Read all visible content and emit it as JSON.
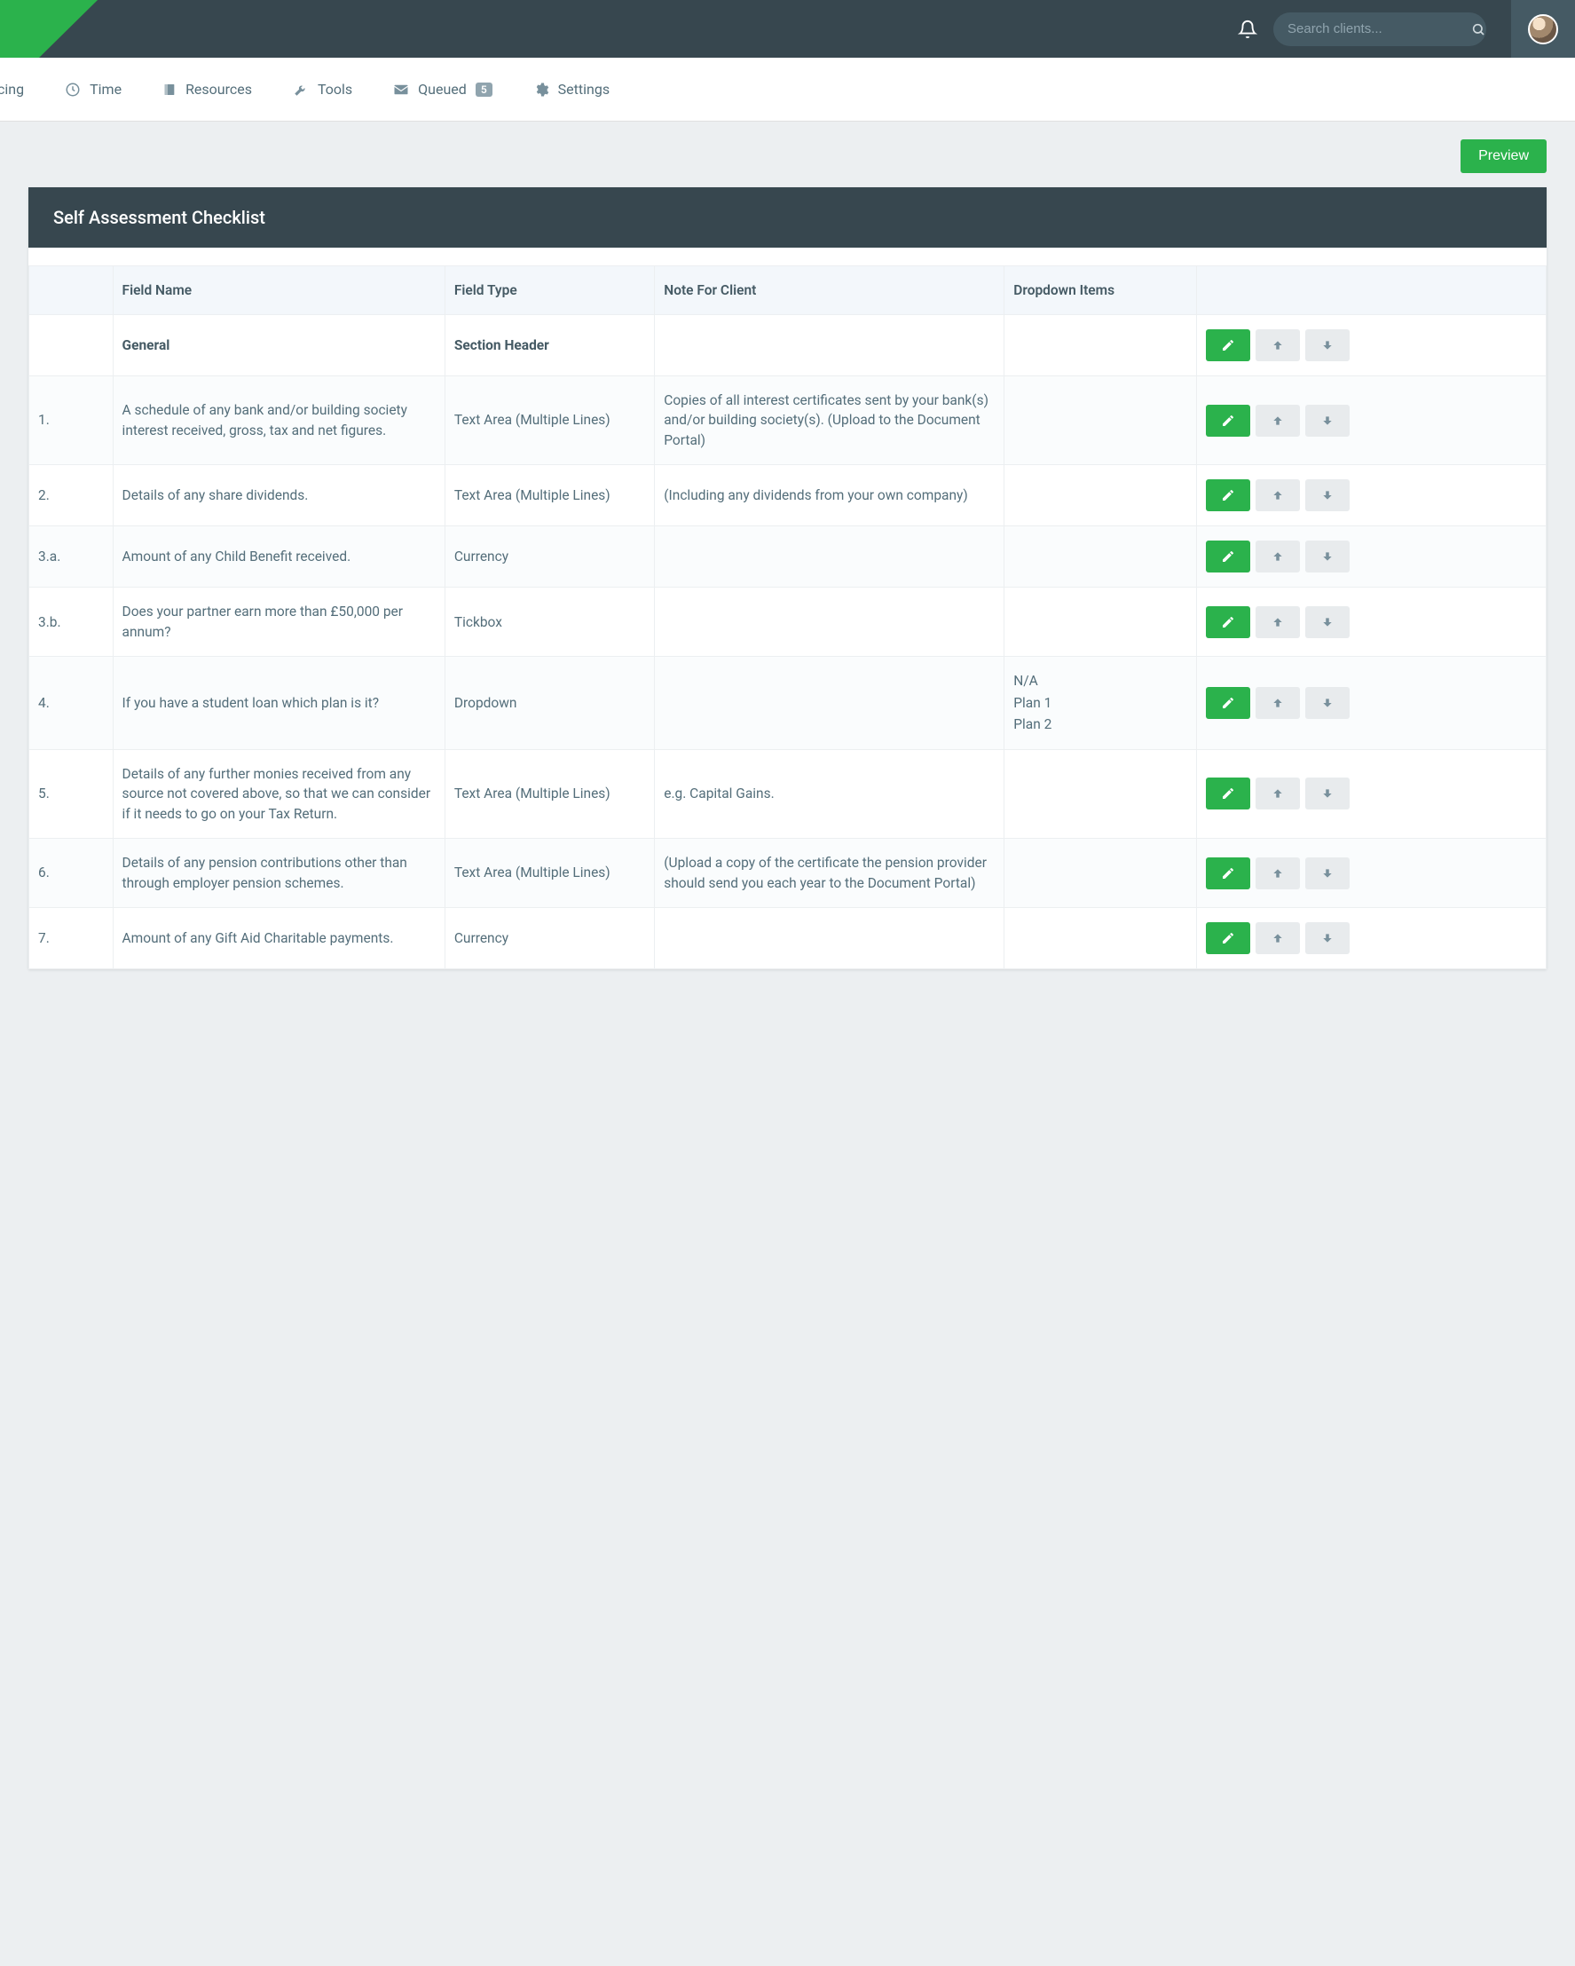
{
  "colors": {
    "accent": "#2bb24c",
    "header_bg": "#37474f",
    "page_bg": "#eceff1",
    "text": "#546e7a",
    "muted_btn": "#e8ebed"
  },
  "header": {
    "search_placeholder": "Search clients..."
  },
  "nav": {
    "items": [
      {
        "label": "oicing",
        "icon": "invoice"
      },
      {
        "label": "Time",
        "icon": "clock"
      },
      {
        "label": "Resources",
        "icon": "book"
      },
      {
        "label": "Tools",
        "icon": "wrench"
      },
      {
        "label": "Queued",
        "icon": "mail",
        "badge": "5"
      },
      {
        "label": "Settings",
        "icon": "gear"
      }
    ]
  },
  "preview_button": "Preview",
  "panel": {
    "title": "Self Assessment Checklist"
  },
  "table": {
    "columns": [
      "",
      "Field Name",
      "Field Type",
      "Note For Client",
      "Dropdown Items",
      ""
    ],
    "rows": [
      {
        "num": "",
        "name": "General",
        "type": "Section Header",
        "note": "",
        "dropdown": [],
        "section": true
      },
      {
        "num": "1.",
        "name": "A schedule of any bank and/or building society interest received, gross, tax and net figures.",
        "type": "Text Area (Multiple Lines)",
        "note": "Copies of all interest certificates sent by your bank(s) and/or building society(s). (Upload to the Document Portal)",
        "dropdown": []
      },
      {
        "num": "2.",
        "name": "Details of any share dividends.",
        "type": "Text Area (Multiple Lines)",
        "note": "(Including any dividends from your own company)",
        "dropdown": []
      },
      {
        "num": "3.a.",
        "name": "Amount of any Child Benefit received.",
        "type": "Currency",
        "note": "",
        "dropdown": []
      },
      {
        "num": "3.b.",
        "name": "Does your partner earn more than £50,000 per annum?",
        "type": "Tickbox",
        "note": "",
        "dropdown": []
      },
      {
        "num": "4.",
        "name": "If you have a student loan which plan is it?",
        "type": "Dropdown",
        "note": "",
        "dropdown": [
          "N/A",
          "Plan 1",
          "Plan 2"
        ]
      },
      {
        "num": "5.",
        "name": "Details of any further monies received from any source not covered above, so that we can consider if it needs to go on your Tax Return.",
        "type": "Text Area (Multiple Lines)",
        "note": "e.g. Capital Gains.",
        "dropdown": []
      },
      {
        "num": "6.",
        "name": "Details of any pension contributions other than through employer pension schemes.",
        "type": "Text Area (Multiple Lines)",
        "note": "(Upload a copy of the certificate the pension provider should send you each year to the Document Portal)",
        "dropdown": []
      },
      {
        "num": "7.",
        "name": "Amount of any Gift Aid Charitable payments.",
        "type": "Currency",
        "note": "",
        "dropdown": []
      }
    ]
  }
}
